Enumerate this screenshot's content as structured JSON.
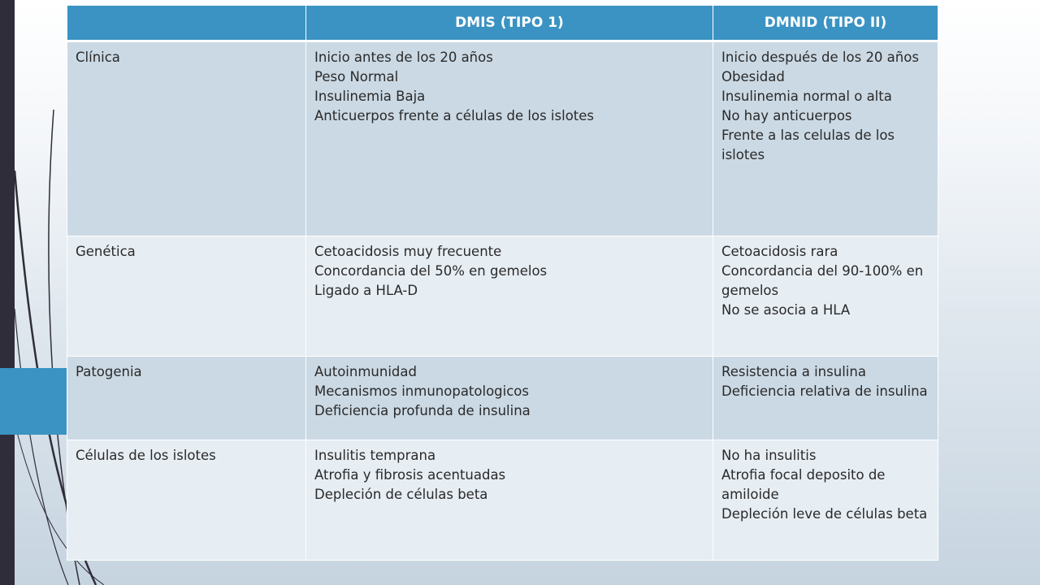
{
  "table": {
    "headers": [
      "",
      "DMIS (TIPO 1)",
      "DMNID (TIPO II)"
    ],
    "rows": [
      {
        "label": "Clínica",
        "tipo1": [
          "Inicio antes de los 20 años",
          "Peso Normal",
          "Insulinemia Baja",
          "Anticuerpos frente a células de los islotes"
        ],
        "tipo2": [
          "Inicio después de los 20 años",
          "Obesidad",
          "Insulinemia normal o alta",
          "No hay anticuerpos",
          "Frente a las celulas de los islotes"
        ]
      },
      {
        "label": "Genética",
        "tipo1": [
          "Cetoacidosis muy frecuente",
          "Concordancia del 50% en gemelos",
          "Ligado a HLA-D"
        ],
        "tipo2": [
          "Cetoacidosis rara",
          "Concordancia del 90-100% en gemelos",
          "No se asocia a HLA"
        ]
      },
      {
        "label": "Patogenia",
        "tipo1": [
          "Autoinmunidad",
          "Mecanismos inmunopatologicos",
          "Deficiencia profunda de insulina"
        ],
        "tipo2": [
          "Resistencia a insulina",
          "Deficiencia relativa de insulina"
        ]
      },
      {
        "label": "Células de los islotes",
        "tipo1": [
          "Insulitis temprana",
          "Atrofia y fibrosis acentuadas",
          "Depleción de células beta"
        ],
        "tipo2": [
          "No ha insulitis",
          "Atrofia focal deposito de amiloide",
          "Depleción leve de células beta"
        ]
      }
    ]
  },
  "colors": {
    "header": "#3a93c2",
    "row_dark": "#cbd9e4",
    "row_light": "#e6edf3",
    "left_bar": "#2f2d3a"
  }
}
